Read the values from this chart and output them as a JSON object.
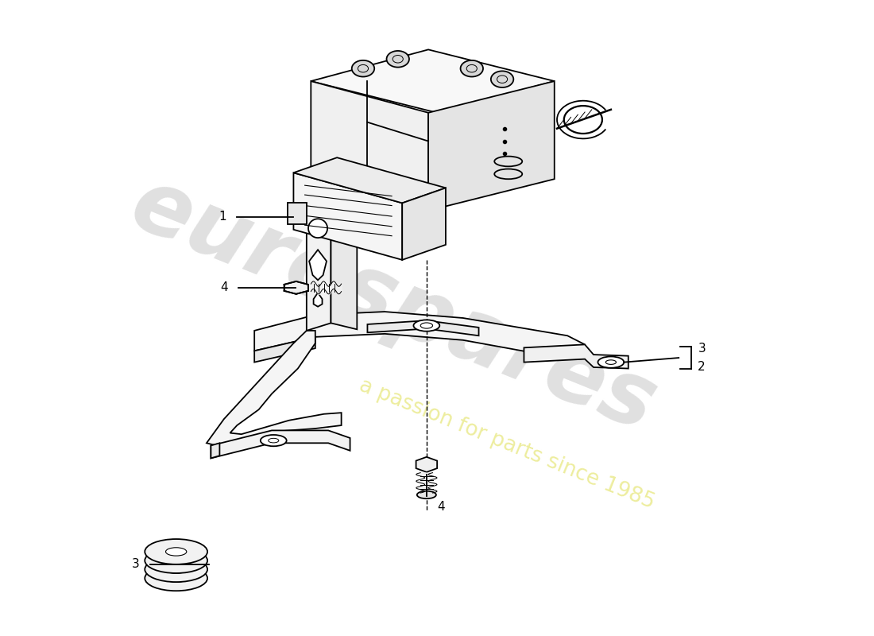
{
  "background_color": "#ffffff",
  "fig_width": 11.0,
  "fig_height": 8.0,
  "dpi": 100,
  "line_color": "#000000",
  "label_fontsize": 11,
  "watermark_color1": "#e0e0e0",
  "watermark_color2": "#eded9e"
}
